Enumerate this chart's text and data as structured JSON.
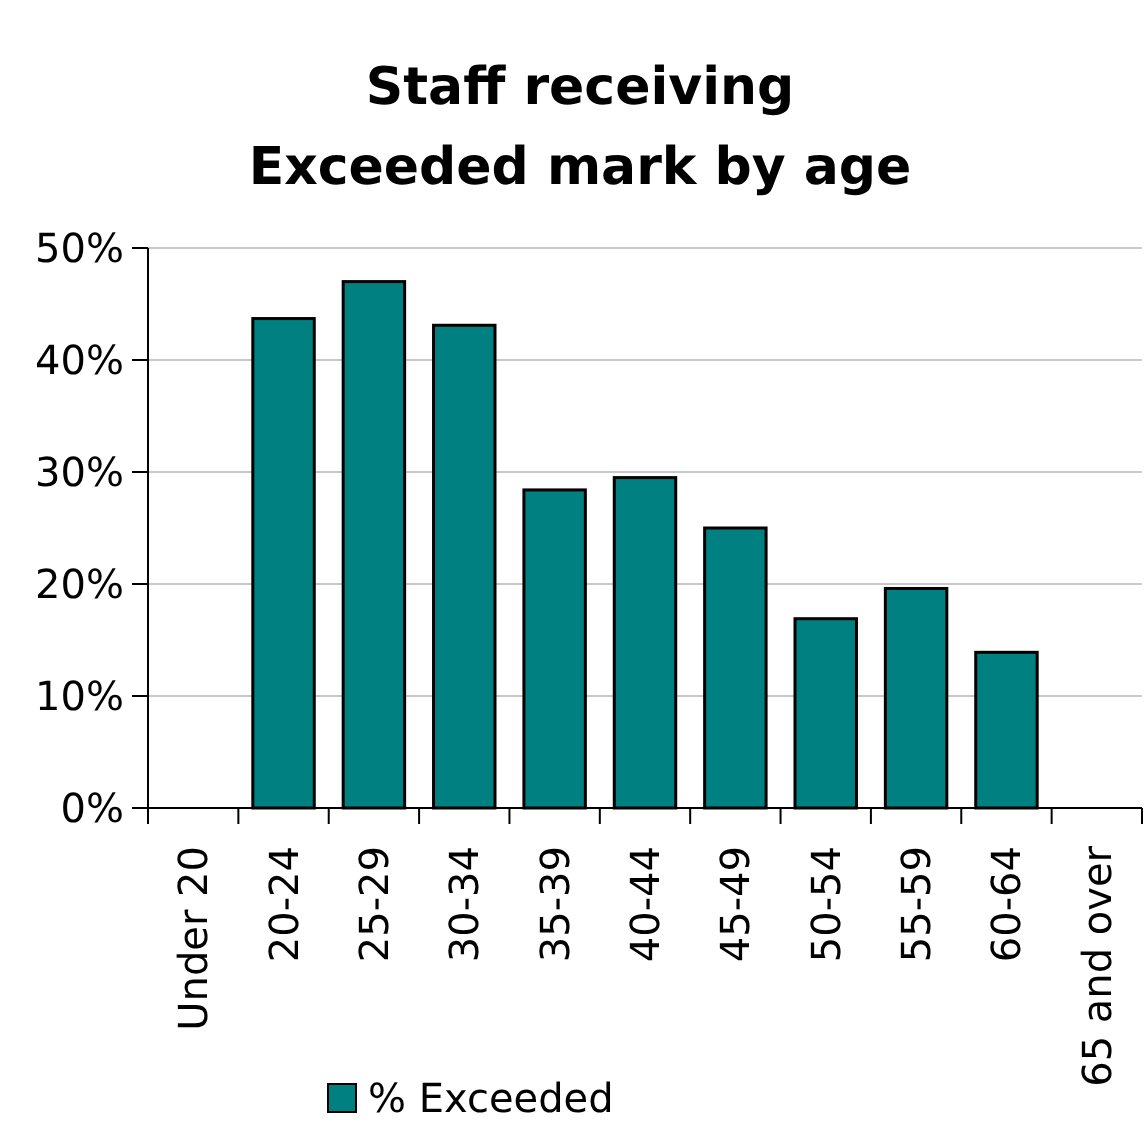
{
  "chart_data": {
    "type": "bar",
    "title": "Staff receiving Exceeded mark by age",
    "categories": [
      "Under 20",
      "20-24",
      "25-29",
      "30-34",
      "35-39",
      "40-44",
      "45-49",
      "50-54",
      "55-59",
      "60-64",
      "65 and over"
    ],
    "series": [
      {
        "name": "% Exceeded",
        "color": "#008080",
        "values": [
          null,
          43.7,
          47.0,
          43.1,
          28.4,
          29.5,
          25.0,
          16.9,
          19.6,
          13.9,
          null
        ]
      }
    ],
    "ylim": [
      0,
      50
    ],
    "yticks": [
      {
        "value": 0,
        "label": "0%"
      },
      {
        "value": 10,
        "label": "10%"
      },
      {
        "value": 20,
        "label": "20%"
      },
      {
        "value": 30,
        "label": "30%"
      },
      {
        "value": 40,
        "label": "40%"
      },
      {
        "value": 50,
        "label": "50%"
      }
    ],
    "grid": "y",
    "legend": "bottom"
  }
}
